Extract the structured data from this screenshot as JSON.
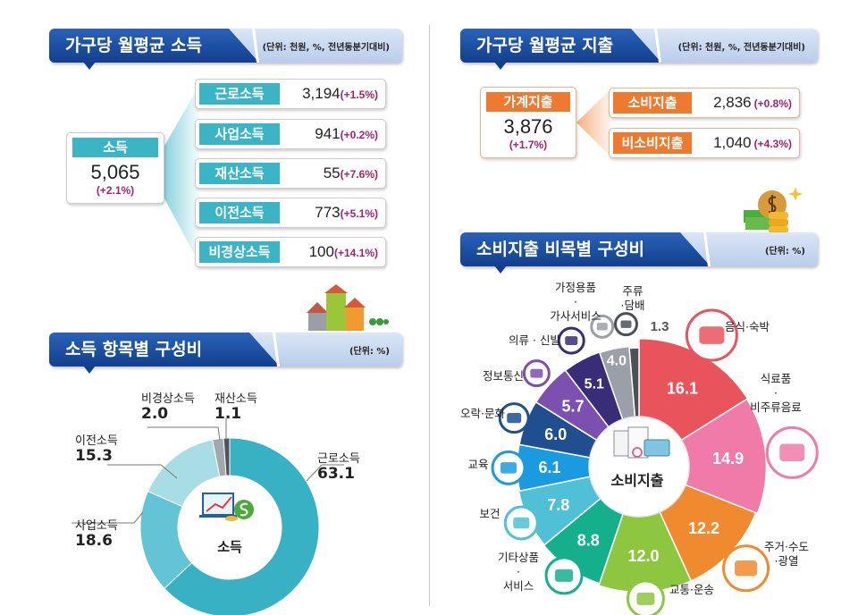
{
  "income": {
    "title": "가구당 월평균 소득",
    "unit": "(단위: 천원, %, 전년동분기대비)",
    "total": {
      "label": "소득",
      "value": "5,065",
      "change": "(+2.1%)"
    },
    "items": [
      {
        "label": "근로소득",
        "value": "3,194",
        "change": "(+1.5%)"
      },
      {
        "label": "사업소득",
        "value": "941",
        "change": "(+0.2%)"
      },
      {
        "label": "재산소득",
        "value": "55",
        "change": "(+7.6%)"
      },
      {
        "label": "이전소득",
        "value": "773",
        "change": "(+5.1%)"
      },
      {
        "label": "비경상소득",
        "value": "100",
        "change": "(+14.1%)"
      }
    ]
  },
  "expenditure": {
    "title": "가구당 월평균 지출",
    "unit": "(단위: 천원, %, 전년동분기대비)",
    "total": {
      "label": "가계지출",
      "value": "3,876",
      "change": "(+1.7%)"
    },
    "items": [
      {
        "label": "소비지출",
        "value": "2,836",
        "change": "(+0.8%)"
      },
      {
        "label": "비소비지출",
        "value": "1,040",
        "change": "(+4.3%)"
      }
    ]
  },
  "chart_data": [
    {
      "type": "pie",
      "title": "소득 항목별 구성비",
      "unit": "(단위: %)",
      "center_label": "소득",
      "categories": [
        "근로소득",
        "사업소득",
        "이전소득",
        "비경상소득",
        "재산소득"
      ],
      "values": [
        63.1,
        18.6,
        15.3,
        2.0,
        1.1
      ],
      "value_labels": [
        "63.1",
        "18.6",
        "15.3",
        "2.0",
        "1.1"
      ],
      "colors": [
        "#38b1c4",
        "#62c4d5",
        "#a9dde6",
        "#a4a7ad",
        "#50545a"
      ]
    },
    {
      "type": "pie",
      "title": "소비지출 비목별 구성비",
      "unit": "(단위: %)",
      "center_label": "소비지출",
      "categories": [
        "음식·숙박",
        "식료품·비주류음료",
        "주거·수도·광열",
        "교통·운송",
        "기타상품·서비스",
        "보건",
        "교육",
        "오락·문화",
        "정보통신",
        "의류·신발",
        "가정용품·가사서비스",
        "주류·담배"
      ],
      "label_lines": [
        [
          "음식·숙박"
        ],
        [
          "식료품",
          "·",
          "비주류음료"
        ],
        [
          "주거·수도",
          "·광열"
        ],
        [
          "교통·운송"
        ],
        [
          "기타상품",
          "·",
          "서비스"
        ],
        [
          "보건"
        ],
        [
          "교육"
        ],
        [
          "오락·문화"
        ],
        [
          "정보통신"
        ],
        [
          "의류 · 신발"
        ],
        [
          "가정용품",
          "·",
          "가사서비스"
        ],
        [
          "주류",
          "·담배"
        ]
      ],
      "values": [
        16.1,
        14.9,
        12.2,
        12.0,
        8.8,
        7.8,
        6.1,
        6.0,
        5.7,
        5.1,
        4.0,
        1.3
      ],
      "value_labels": [
        "16.1",
        "14.9",
        "12.2",
        "12.0",
        "8.8",
        "7.8",
        "6.1",
        "6.0",
        "5.7",
        "5.1",
        "4.0",
        "1.3"
      ],
      "colors": [
        "#e9535b",
        "#f07ba8",
        "#f08a2f",
        "#8dc63f",
        "#14b08c",
        "#4fc0d6",
        "#1a9be0",
        "#1f4f8e",
        "#7b50ae",
        "#3a2d78",
        "#9b9fa7",
        "#4b5058"
      ]
    }
  ]
}
